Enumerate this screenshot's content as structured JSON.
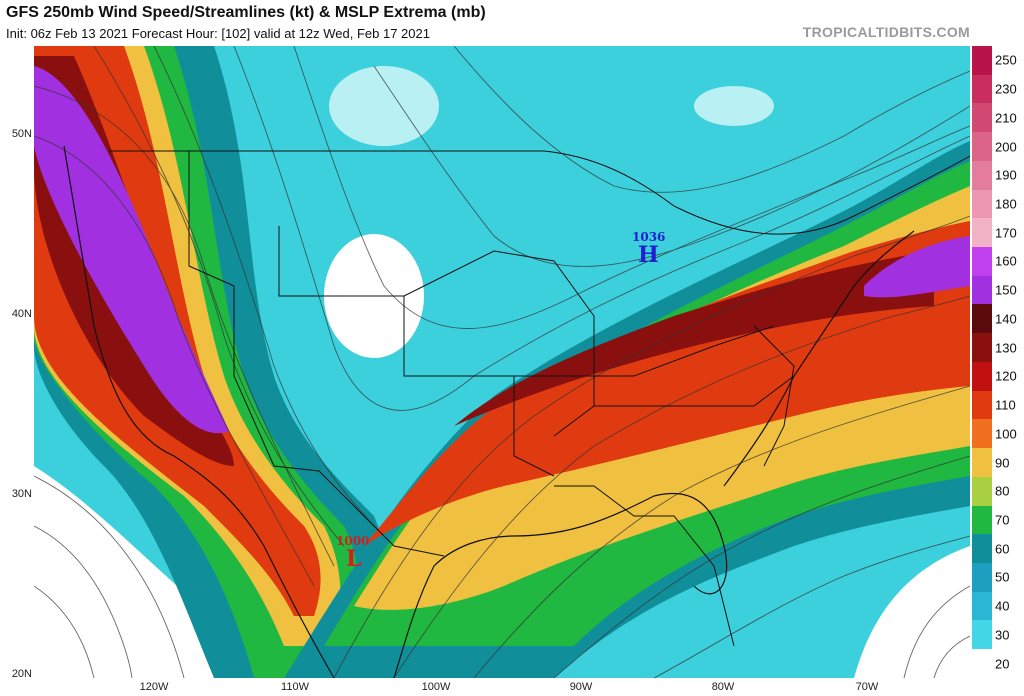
{
  "title": "GFS 250mb Wind Speed/Streamlines (kt) & MSLP Extrema (mb)",
  "subtitle": "Init: 06z Feb 13 2021   Forecast Hour: [102]   valid at 12z Wed, Feb 17 2021",
  "brand": "TROPICALTIDBITS.COM",
  "latitude_labels": [
    "50N",
    "40N",
    "30N",
    "20N"
  ],
  "longitude_labels": [
    "120W",
    "110W",
    "100W",
    "90W",
    "80W",
    "70W"
  ],
  "colorbar": {
    "labels": [
      "250",
      "230",
      "210",
      "200",
      "190",
      "180",
      "170",
      "160",
      "150",
      "140",
      "130",
      "120",
      "110",
      "100",
      "90",
      "80",
      "70",
      "60",
      "50",
      "40",
      "30",
      "20"
    ],
    "colors": [
      "#b8134a",
      "#c82f60",
      "#d24a74",
      "#dc6488",
      "#e47d9c",
      "#ec98b2",
      "#f2b2c6",
      "#c040f0",
      "#a030e0",
      "#5a0a0a",
      "#8a0f0f",
      "#c01010",
      "#e03a10",
      "#f07020",
      "#f0c040",
      "#a8d040",
      "#20b840",
      "#108f9a",
      "#1d9fbf",
      "#2bb6d6",
      "#42d6e6",
      "#ffffff"
    ]
  },
  "pressure_extrema": [
    {
      "type": "H",
      "value": "1036"
    },
    {
      "type": "L",
      "value": "1000"
    }
  ]
}
